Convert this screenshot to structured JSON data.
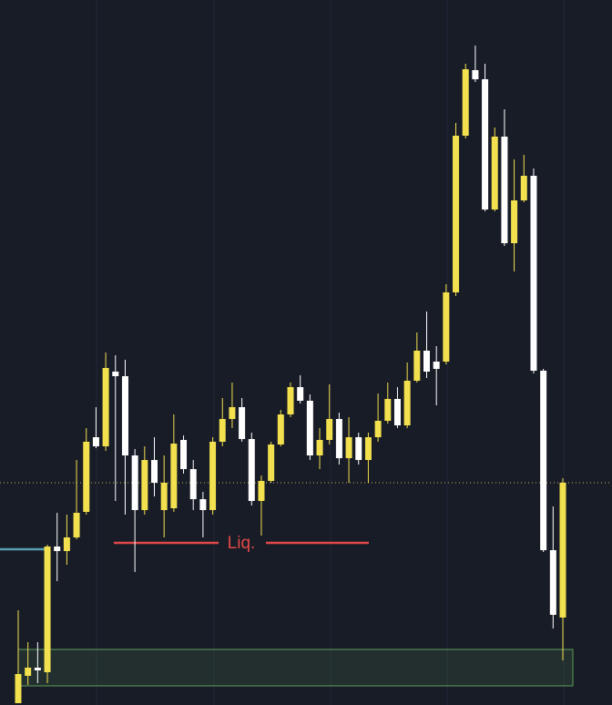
{
  "chart_data": {
    "type": "candlestick",
    "open": [
      2,
      32,
      41,
      36,
      174,
      169,
      184,
      212,
      294,
      284,
      366,
      361,
      274,
      214,
      269,
      214,
      216,
      291,
      259,
      226,
      214,
      289,
      314,
      327,
      292,
      224,
      246,
      286,
      319,
      349,
      334,
      274,
      291,
      314,
      271,
      294,
      269,
      294,
      312,
      336,
      307,
      356,
      389,
      377,
      377,
      453,
      625,
      697,
      687,
      544,
      624,
      507,
      554,
      581,
      367,
      170,
      96
    ],
    "high": [
      104,
      69,
      69,
      176,
      211,
      209,
      269,
      304,
      327,
      387,
      384,
      379,
      281,
      284,
      294,
      274,
      319,
      296,
      269,
      234,
      294,
      337,
      354,
      337,
      299,
      252,
      289,
      324,
      354,
      362,
      341,
      304,
      352,
      321,
      316,
      299,
      299,
      342,
      354,
      349,
      376,
      409,
      432,
      394,
      462,
      639,
      704,
      724,
      704,
      634,
      654,
      599,
      604,
      589,
      369,
      218,
      249
    ],
    "low": [
      2,
      22,
      24,
      24,
      136,
      154,
      182,
      209,
      282,
      279,
      224,
      209,
      146,
      209,
      229,
      184,
      212,
      254,
      214,
      184,
      209,
      284,
      304,
      289,
      219,
      186,
      244,
      284,
      316,
      331,
      269,
      259,
      286,
      264,
      244,
      264,
      244,
      289,
      309,
      304,
      304,
      354,
      359,
      329,
      374,
      449,
      622,
      684,
      542,
      542,
      504,
      476,
      552,
      364,
      168,
      84,
      49
    ],
    "close": [
      34,
      41,
      38,
      174,
      169,
      184,
      211,
      289,
      284,
      370,
      361,
      274,
      214,
      269,
      244,
      244,
      287,
      259,
      226,
      214,
      289,
      314,
      327,
      292,
      224,
      246,
      286,
      319,
      349,
      334,
      274,
      291,
      314,
      271,
      294,
      269,
      294,
      312,
      336,
      307,
      356,
      389,
      366,
      369,
      453,
      625,
      698,
      687,
      544,
      624,
      507,
      554,
      581,
      367,
      170,
      99,
      244
    ],
    "up_color": "#f2e04e",
    "down_color": "#ffffff",
    "ylim": [
      0,
      774
    ],
    "liq_level": 178,
    "liq_label": "Liq.",
    "liq_color": "#e04848",
    "level_line": 171,
    "level_color": "#5b9fb5",
    "price_line": 244,
    "zone": [
      21,
      61
    ],
    "zone_color": "#5f9e58"
  }
}
